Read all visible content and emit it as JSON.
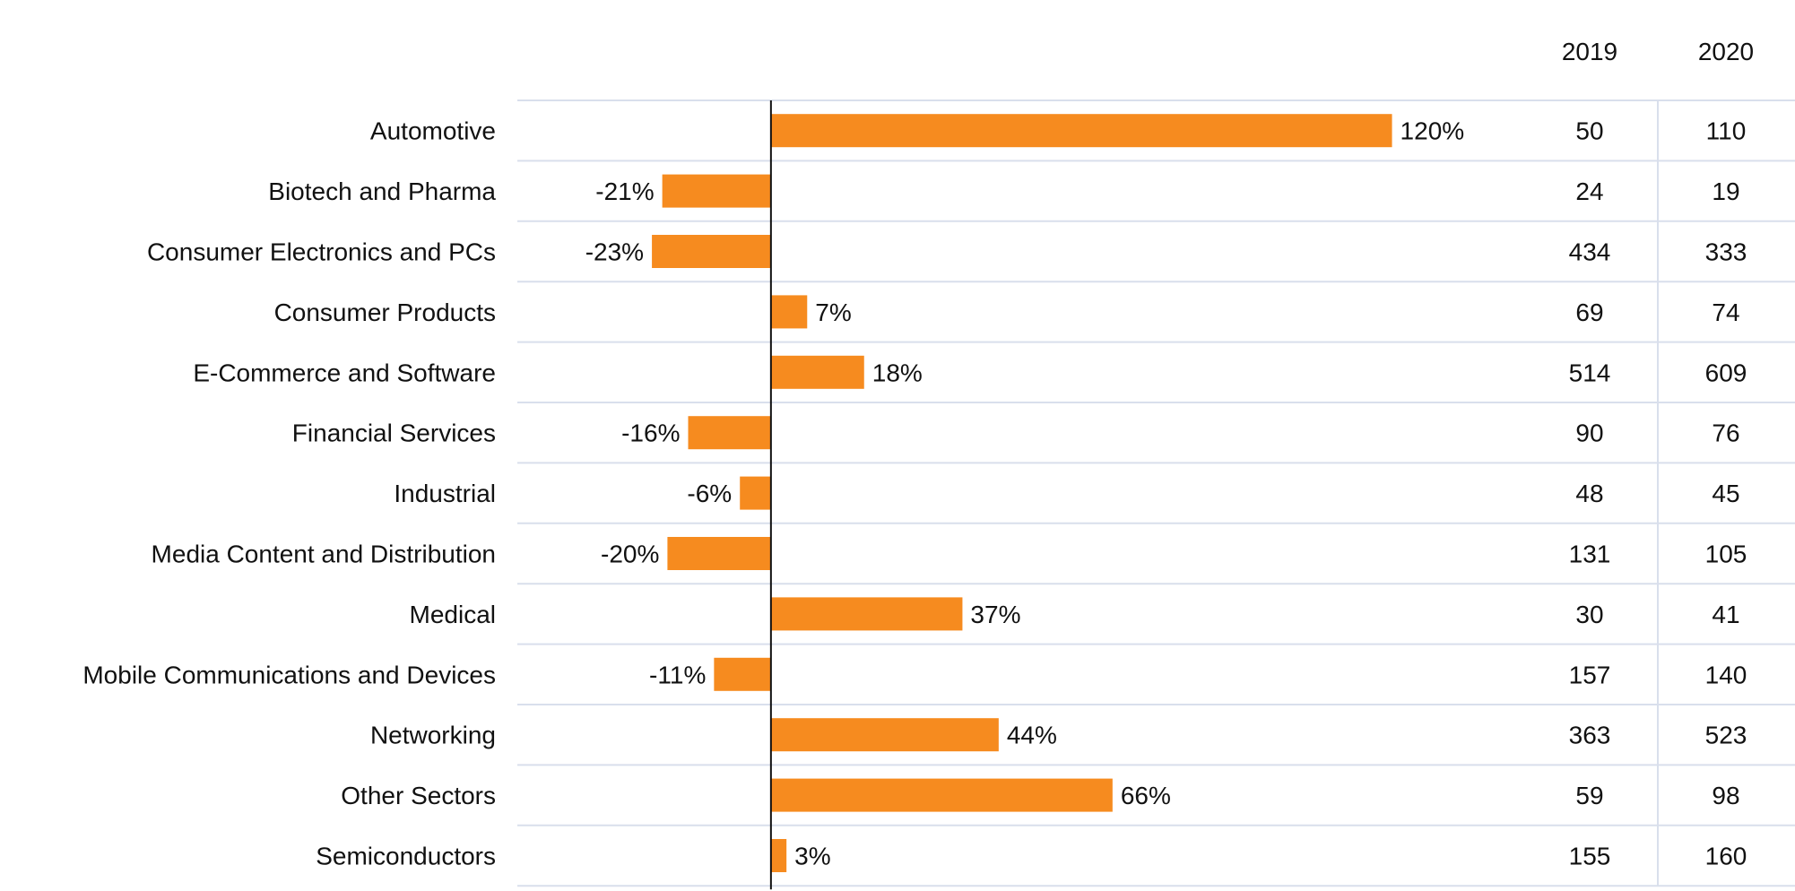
{
  "chart_data": {
    "type": "bar",
    "orientation": "horizontal",
    "title": "",
    "xlabel": "",
    "ylabel": "",
    "bar_color": "#f68b1f",
    "grid_color": "#d9dfec",
    "axis_color": "#111111",
    "grid": true,
    "legend": "none",
    "categories": [
      "Automotive",
      "Biotech and Pharma",
      "Consumer Electronics and PCs",
      "Consumer Products",
      "E-Commerce and Software",
      "Financial Services",
      "Industrial",
      "Media Content and Distribution",
      "Medical",
      "Mobile Communications and Devices",
      "Networking",
      "Other Sectors",
      "Semiconductors"
    ],
    "values": [
      120,
      -21,
      -23,
      7,
      18,
      -16,
      -6,
      -20,
      37,
      -11,
      44,
      66,
      3
    ],
    "value_labels": [
      "120%",
      "-21%",
      "-23%",
      "7%",
      "18%",
      "-16%",
      "-6%",
      "-20%",
      "37%",
      "-11%",
      "44%",
      "66%",
      "3%"
    ],
    "xlim": [
      -49,
      140
    ],
    "table": {
      "columns": [
        "2019",
        "2020"
      ],
      "rows": [
        [
          "50",
          "110"
        ],
        [
          "24",
          "19"
        ],
        [
          "434",
          "333"
        ],
        [
          "69",
          "74"
        ],
        [
          "514",
          "609"
        ],
        [
          "90",
          "76"
        ],
        [
          "48",
          "45"
        ],
        [
          "131",
          "105"
        ],
        [
          "30",
          "41"
        ],
        [
          "157",
          "140"
        ],
        [
          "363",
          "523"
        ],
        [
          "59",
          "98"
        ],
        [
          "155",
          "160"
        ]
      ]
    }
  }
}
